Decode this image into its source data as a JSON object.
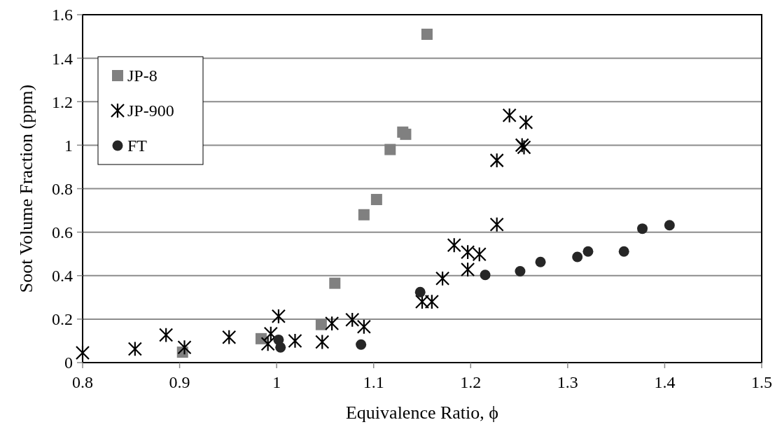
{
  "chart_data": {
    "type": "scatter",
    "xlabel": "Equivalence Ratio, ϕ",
    "ylabel": "Soot Volume Fraction (ppm)",
    "xlim": [
      0.8,
      1.5
    ],
    "xticks": [
      0.8,
      0.9,
      1,
      1.1,
      1.2,
      1.3,
      1.4,
      1.5
    ],
    "ylim": [
      0,
      1.6
    ],
    "yticks": [
      0,
      0.2,
      0.4,
      0.6,
      0.8,
      1,
      1.2,
      1.4,
      1.6
    ],
    "grid": "y",
    "legend": "top left",
    "series": [
      {
        "name": "JP-8",
        "color": "#808080",
        "marker": "square",
        "x": [
          1.155,
          1.117,
          1.13,
          1.133,
          1.103,
          1.09,
          1.06,
          1.046,
          0.984,
          0.903
        ],
        "values": [
          1.51,
          0.98,
          1.06,
          1.05,
          0.75,
          0.68,
          0.365,
          0.175,
          0.11,
          0.048
        ]
      },
      {
        "name": "JP-900",
        "color": "#000000",
        "marker": "cross",
        "x": [
          0.8,
          0.854,
          0.886,
          0.905,
          0.951,
          0.994,
          0.991,
          1.002,
          1.019,
          1.047,
          1.057,
          1.078,
          1.09,
          1.15,
          1.16,
          1.171,
          1.183,
          1.197,
          1.209,
          1.197,
          1.227,
          1.24,
          1.257,
          1.253,
          1.255,
          1.227
        ],
        "values": [
          0.045,
          0.063,
          0.127,
          0.07,
          0.117,
          0.133,
          0.086,
          0.213,
          0.1,
          0.095,
          0.18,
          0.197,
          0.165,
          0.28,
          0.28,
          0.387,
          0.54,
          0.508,
          0.498,
          0.428,
          0.635,
          1.137,
          1.105,
          1.0,
          0.99,
          0.93
        ]
      },
      {
        "name": "FT",
        "color": "#262626",
        "marker": "circle",
        "x": [
          1.002,
          1.004,
          1.087,
          1.148,
          1.215,
          1.251,
          1.272,
          1.31,
          1.321,
          1.358,
          1.377,
          1.405
        ],
        "values": [
          0.105,
          0.07,
          0.083,
          0.324,
          0.403,
          0.42,
          0.463,
          0.486,
          0.511,
          0.511,
          0.616,
          0.632
        ]
      }
    ]
  }
}
